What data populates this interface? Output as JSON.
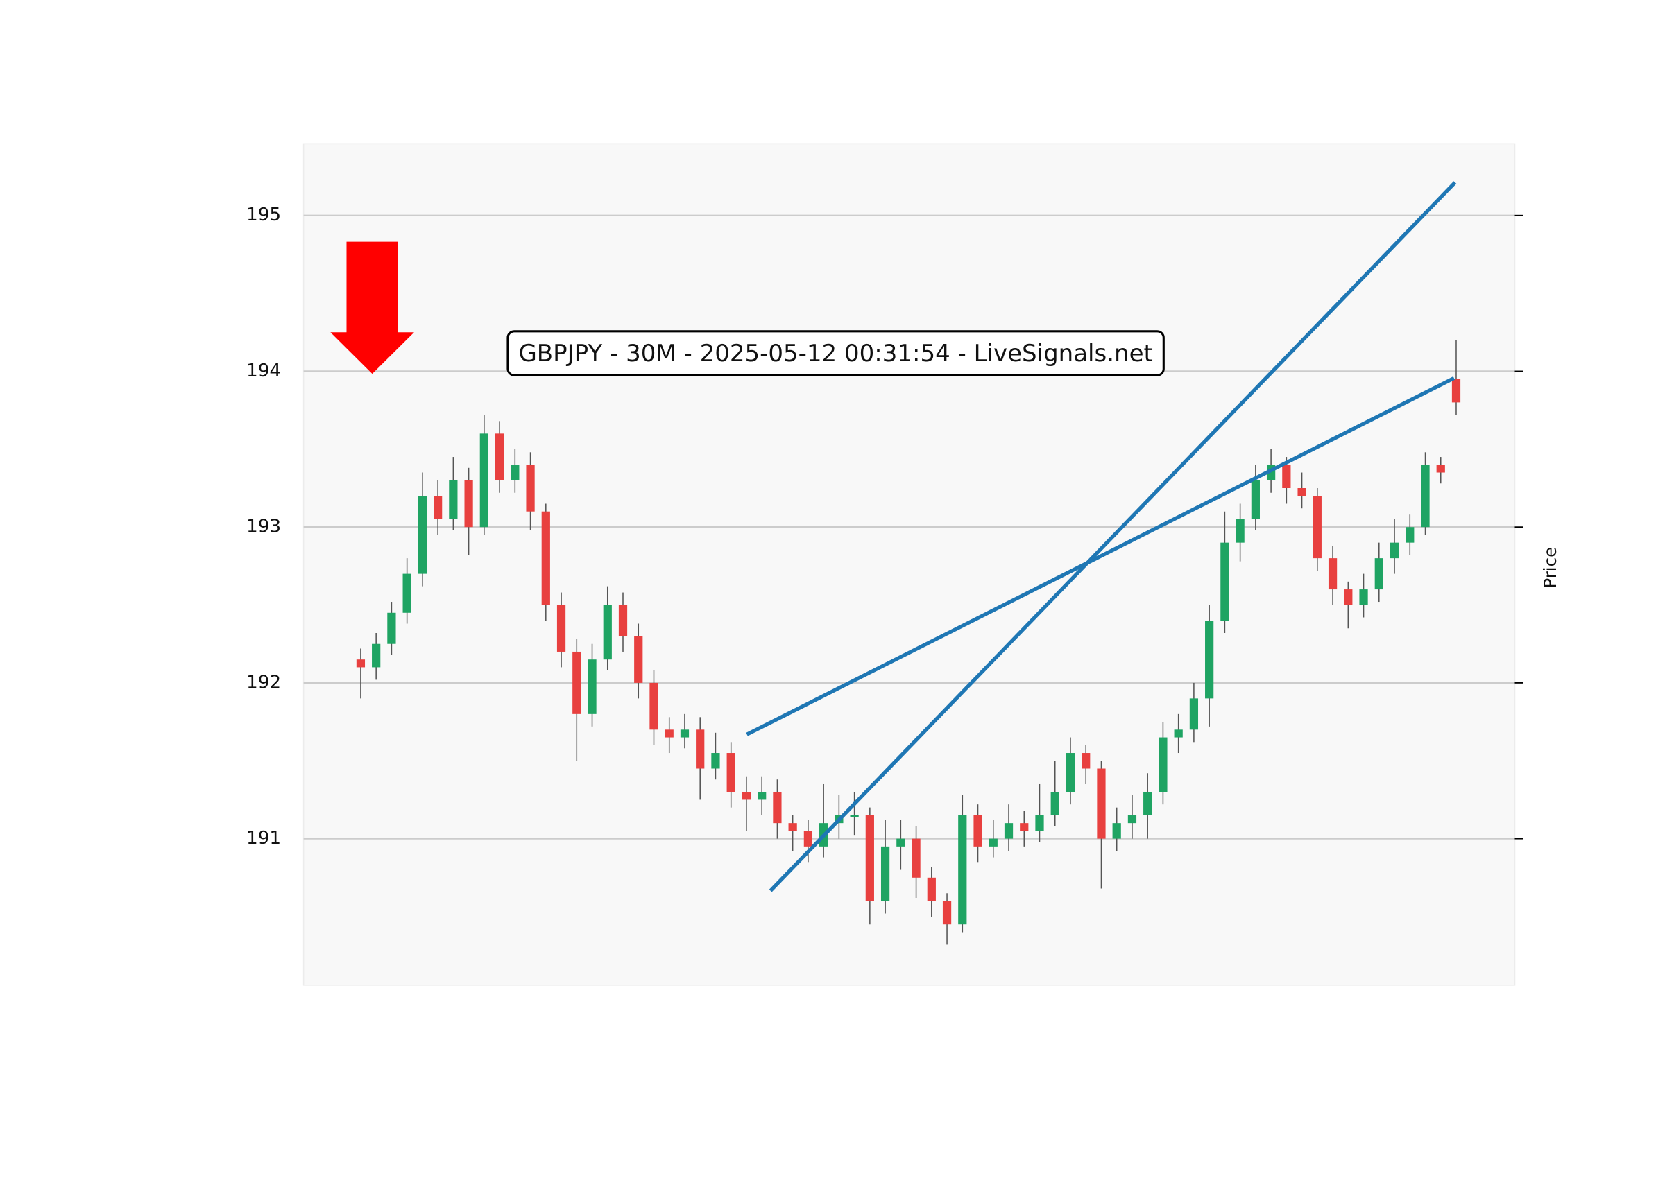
{
  "chart_data": {
    "type": "candlestick",
    "title": "GBPJPY - 30M - 2025-05-12 00:31:54 - LiveSignals.net",
    "ylabel": "Price",
    "ylim": [
      190.06,
      195.46
    ],
    "yticks": [
      191,
      192,
      193,
      194,
      195
    ],
    "xlim": [
      -3.7,
      74.8
    ],
    "grid": true,
    "up_color": "#1fa463",
    "down_color": "#e8403f",
    "open": [
      192.15,
      192.1,
      192.25,
      192.45,
      192.7,
      193.2,
      193.05,
      193.3,
      193.0,
      193.6,
      193.3,
      193.4,
      193.1,
      192.5,
      192.2,
      191.8,
      192.15,
      192.5,
      192.3,
      192.0,
      191.7,
      191.65,
      191.7,
      191.45,
      191.55,
      191.3,
      191.25,
      191.3,
      191.1,
      191.05,
      190.95,
      191.1,
      191.15,
      191.15,
      190.6,
      190.95,
      191.0,
      190.75,
      190.6,
      190.45,
      191.15,
      190.95,
      191.0,
      191.1,
      191.05,
      191.15,
      191.3,
      191.55,
      191.45,
      191.0,
      191.1,
      191.15,
      191.3,
      191.65,
      191.7,
      191.9,
      192.4,
      192.9,
      193.05,
      193.3,
      193.4,
      193.25,
      193.2,
      192.8,
      192.6,
      192.5,
      192.6,
      192.8,
      192.9,
      193.0,
      193.4,
      193.95
    ],
    "high": [
      192.22,
      192.32,
      192.52,
      192.8,
      193.35,
      193.3,
      193.45,
      193.38,
      193.72,
      193.68,
      193.5,
      193.48,
      193.15,
      192.58,
      192.28,
      192.25,
      192.62,
      192.58,
      192.38,
      192.08,
      191.78,
      191.8,
      191.78,
      191.68,
      191.62,
      191.4,
      191.4,
      191.38,
      191.15,
      191.12,
      191.35,
      191.28,
      191.3,
      191.2,
      191.12,
      191.12,
      191.08,
      190.82,
      190.65,
      191.28,
      191.22,
      191.12,
      191.22,
      191.18,
      191.35,
      191.5,
      191.65,
      191.6,
      191.5,
      191.2,
      191.28,
      191.42,
      191.75,
      191.8,
      192.0,
      192.5,
      193.1,
      193.15,
      193.4,
      193.5,
      193.45,
      193.35,
      193.25,
      192.88,
      192.65,
      192.7,
      192.9,
      193.05,
      193.08,
      193.48,
      193.45,
      194.2
    ],
    "low": [
      191.9,
      192.02,
      192.18,
      192.38,
      192.62,
      192.95,
      192.98,
      192.82,
      192.95,
      193.22,
      193.22,
      192.98,
      192.4,
      192.1,
      191.5,
      191.72,
      192.08,
      192.2,
      191.9,
      191.6,
      191.55,
      191.58,
      191.25,
      191.38,
      191.2,
      191.05,
      191.15,
      191.0,
      190.92,
      190.85,
      190.88,
      191.0,
      191.02,
      190.45,
      190.52,
      190.8,
      190.62,
      190.5,
      190.32,
      190.4,
      190.85,
      190.88,
      190.92,
      190.95,
      190.98,
      191.08,
      191.22,
      191.35,
      190.68,
      190.92,
      191.0,
      191.0,
      191.22,
      191.55,
      191.62,
      191.72,
      192.32,
      192.78,
      192.98,
      193.22,
      193.15,
      193.12,
      192.72,
      192.5,
      192.35,
      192.42,
      192.52,
      192.7,
      192.82,
      192.95,
      193.28,
      193.72
    ],
    "close": [
      192.1,
      192.25,
      192.45,
      192.7,
      193.2,
      193.05,
      193.3,
      193.0,
      193.6,
      193.3,
      193.4,
      193.1,
      192.5,
      192.2,
      191.8,
      192.15,
      192.5,
      192.3,
      192.0,
      191.7,
      191.65,
      191.7,
      191.45,
      191.55,
      191.3,
      191.25,
      191.3,
      191.1,
      191.05,
      190.95,
      191.1,
      191.15,
      191.15,
      190.6,
      190.95,
      191.0,
      190.75,
      190.6,
      190.45,
      191.15,
      190.95,
      191.0,
      191.1,
      191.05,
      191.15,
      191.3,
      191.55,
      191.45,
      191.0,
      191.1,
      191.15,
      191.3,
      191.65,
      191.7,
      191.9,
      192.4,
      192.9,
      193.05,
      193.3,
      193.4,
      193.25,
      193.2,
      192.8,
      192.6,
      192.5,
      192.6,
      192.8,
      192.9,
      193.0,
      193.4,
      193.35,
      193.8
    ],
    "lines": [
      {
        "x": [
          25.03,
          70.86
        ],
        "y": [
          191.669,
          193.956
        ],
        "color": "#1f77b4"
      },
      {
        "x": [
          26.56,
          70.93
        ],
        "y": [
          190.666,
          195.212
        ],
        "color": "#1f77b4"
      }
    ]
  }
}
